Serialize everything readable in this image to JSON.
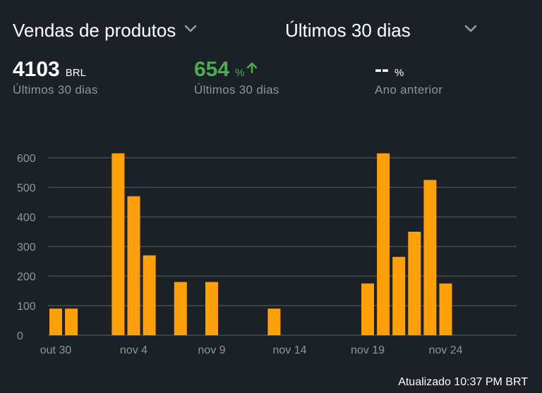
{
  "header": {
    "metric_label": "Vendas de produtos",
    "period_label": "Últimos 30 dias",
    "chevron_icon": "chevron-down-icon"
  },
  "stats": [
    {
      "value": "4103",
      "unit": "BRL",
      "caption": "Últimos 30 dias"
    },
    {
      "value": "654",
      "unit": "%",
      "caption": "Últimos 30 dias",
      "trend_icon": "arrow-up-icon",
      "color": "#4cae50"
    },
    {
      "value": "--",
      "unit": "%",
      "caption": "Ano anterior"
    }
  ],
  "colors": {
    "background": "#1c2127",
    "bar": "#ff9f0a",
    "positive": "#4cae50",
    "grid": "#5b6067",
    "muted": "#8e959c"
  },
  "chart_data": {
    "type": "bar",
    "x": [
      "out 30",
      "out 31",
      "nov 1",
      "nov 2",
      "nov 3",
      "nov 4",
      "nov 5",
      "nov 6",
      "nov 7",
      "nov 8",
      "nov 9",
      "nov 10",
      "nov 11",
      "nov 12",
      "nov 13",
      "nov 14",
      "nov 15",
      "nov 16",
      "nov 17",
      "nov 18",
      "nov 19",
      "nov 20",
      "nov 21",
      "nov 22",
      "nov 23",
      "nov 24",
      "nov 25",
      "nov 26",
      "nov 27"
    ],
    "values": [
      90,
      90,
      0,
      0,
      615,
      470,
      270,
      0,
      180,
      0,
      180,
      0,
      0,
      0,
      90,
      0,
      0,
      0,
      0,
      0,
      175,
      615,
      265,
      350,
      525,
      175,
      0,
      0,
      0
    ],
    "xticks": [
      "out 30",
      "nov 4",
      "nov 9",
      "nov 14",
      "nov 19",
      "nov 24"
    ],
    "yticks": [
      0,
      100,
      200,
      300,
      400,
      500,
      600
    ],
    "ylim": [
      0,
      600
    ],
    "grid": true,
    "legend": "none"
  },
  "footer": {
    "updated": "Atualizado 10:37 PM BRT"
  }
}
